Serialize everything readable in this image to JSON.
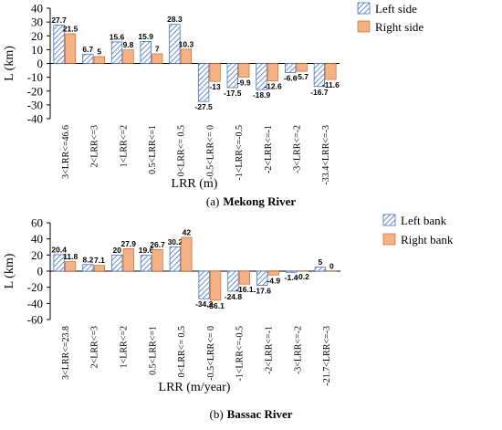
{
  "chart_data": [
    {
      "type": "bar",
      "caption_prefix": "(a)",
      "caption_bold": "Mekong River",
      "xlabel": "LRR (m)",
      "ylabel": "L (km)",
      "ylim": [
        -40,
        40
      ],
      "yticks": [
        -40,
        -30,
        -20,
        -10,
        0,
        10,
        20,
        30,
        40
      ],
      "grid": false,
      "legend_position": "top-right",
      "categories": [
        "3<LRR<=46.6",
        "2<LRR<=3",
        "1<LRR<=2",
        "0.5<LRR<=1",
        "0<LRR<= 0.5",
        "-0.5<LRR<= 0",
        "-1<LRR<=-0.5",
        "-2<LRR<=-1",
        "-3<LRR<=-2",
        "-33.4<LRR<=-3"
      ],
      "series": [
        {
          "name": "Left side",
          "style": "hatch-blue",
          "values": [
            27.7,
            6.7,
            15.6,
            15.9,
            28.3,
            -27.5,
            -17.5,
            -18.9,
            -6.6,
            -16.7
          ]
        },
        {
          "name": "Right side",
          "style": "orange",
          "values": [
            21.5,
            5,
            9.8,
            7,
            10.3,
            -13,
            -9.9,
            -12.6,
            -5.7,
            -11.6
          ]
        }
      ]
    },
    {
      "type": "bar",
      "caption_prefix": "(b)",
      "caption_bold": "Bassac River",
      "xlabel": "LRR (m/year)",
      "ylabel": "L (km)",
      "ylim": [
        -60,
        60
      ],
      "yticks": [
        -60,
        -40,
        -20,
        0,
        20,
        40,
        60
      ],
      "grid": false,
      "legend_position": "top-right",
      "categories": [
        "3<LRR<=23.8",
        "2<LRR<=3",
        "1<LRR<=2",
        "0.5<LRR<=1",
        "0<LRR<= 0.5",
        "-0.5<LRR<= 0",
        "-1<LRR<=-0.5",
        "-2<LRR<=-1",
        "-3<LRR<=-2",
        "-21.7<LRR<=-3"
      ],
      "series": [
        {
          "name": "Left bank",
          "style": "hatch-blue",
          "values": [
            20.4,
            8.2,
            20,
            19.6,
            30.2,
            -34.2,
            -24.8,
            -17.6,
            -1.4,
            5
          ]
        },
        {
          "name": "Right bank",
          "style": "orange",
          "values": [
            11.8,
            7.1,
            27.9,
            26.7,
            42,
            -36.1,
            -16.1,
            -4.9,
            -0.2,
            0
          ]
        }
      ]
    }
  ],
  "colors": {
    "left_stroke": "#4472c4",
    "right_fill": "#f4b183",
    "right_stroke": "#c55a11",
    "axis": "#000000"
  }
}
